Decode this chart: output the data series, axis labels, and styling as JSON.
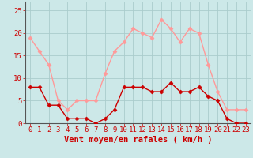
{
  "hours": [
    0,
    1,
    2,
    3,
    4,
    5,
    6,
    7,
    8,
    9,
    10,
    11,
    12,
    13,
    14,
    15,
    16,
    17,
    18,
    19,
    20,
    21,
    22,
    23
  ],
  "wind_mean": [
    8,
    8,
    4,
    4,
    1,
    1,
    1,
    0,
    1,
    3,
    8,
    8,
    8,
    7,
    7,
    9,
    7,
    7,
    8,
    6,
    5,
    1,
    0,
    0
  ],
  "wind_gust": [
    19,
    16,
    13,
    5,
    3,
    5,
    5,
    5,
    11,
    16,
    18,
    21,
    20,
    19,
    23,
    21,
    18,
    21,
    20,
    13,
    7,
    3,
    3,
    3
  ],
  "bg_color": "#cce8e8",
  "grid_color": "#aacccc",
  "line_mean_color": "#cc0000",
  "line_gust_color": "#ff9999",
  "marker": "D",
  "marker_size": 2.5,
  "xlabel": "Vent moyen/en rafales ( km/h )",
  "xlabel_color": "#cc0000",
  "xlabel_fontsize": 7.5,
  "tick_color": "#cc0000",
  "tick_fontsize": 6.5,
  "ylim": [
    0,
    27
  ],
  "yticks": [
    0,
    5,
    10,
    15,
    20,
    25
  ],
  "linewidth": 1.0
}
